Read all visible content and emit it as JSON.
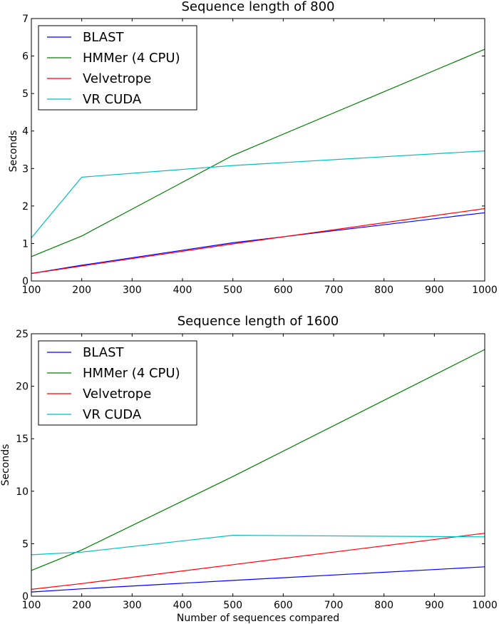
{
  "chart_data": [
    {
      "type": "line",
      "title": "Sequence length of 800",
      "xlabel": "",
      "ylabel": "Seconds",
      "xlim": [
        100,
        1000
      ],
      "ylim": [
        0,
        7
      ],
      "x": [
        100,
        200,
        500,
        1000
      ],
      "xticks": [
        100,
        200,
        300,
        400,
        500,
        600,
        700,
        800,
        900,
        1000
      ],
      "yticks": [
        0,
        1,
        2,
        3,
        4,
        5,
        6,
        7
      ],
      "grid": false,
      "legend_position": "top-left",
      "series": [
        {
          "name": "BLAST",
          "color": "#0000ff",
          "values": [
            0.2,
            0.42,
            1.02,
            1.82
          ]
        },
        {
          "name": "HMMer (4 CPU)",
          "color": "#008000",
          "values": [
            0.65,
            1.2,
            3.35,
            6.18
          ]
        },
        {
          "name": "Velvetrope",
          "color": "#ff0000",
          "values": [
            0.2,
            0.4,
            0.99,
            1.93
          ]
        },
        {
          "name": "VR CUDA",
          "color": "#00bfbf",
          "values": [
            1.15,
            2.77,
            3.08,
            3.47
          ]
        }
      ]
    },
    {
      "type": "line",
      "title": "Sequence length of 1600",
      "xlabel": "Number of sequences compared",
      "ylabel": "Seconds",
      "xlim": [
        100,
        1000
      ],
      "ylim": [
        0,
        25
      ],
      "x": [
        100,
        200,
        500,
        1000
      ],
      "xticks": [
        100,
        200,
        300,
        400,
        500,
        600,
        700,
        800,
        900,
        1000
      ],
      "yticks": [
        0,
        5,
        10,
        15,
        20,
        25
      ],
      "grid": false,
      "legend_position": "top-left",
      "series": [
        {
          "name": "BLAST",
          "color": "#0000ff",
          "values": [
            0.4,
            0.7,
            1.5,
            2.8
          ]
        },
        {
          "name": "HMMer (4 CPU)",
          "color": "#008000",
          "values": [
            2.45,
            4.4,
            11.4,
            23.5
          ]
        },
        {
          "name": "Velvetrope",
          "color": "#ff0000",
          "values": [
            0.65,
            1.2,
            3.0,
            6.0
          ]
        },
        {
          "name": "VR CUDA",
          "color": "#00bfbf",
          "values": [
            3.95,
            4.2,
            5.8,
            5.65
          ]
        }
      ]
    }
  ]
}
